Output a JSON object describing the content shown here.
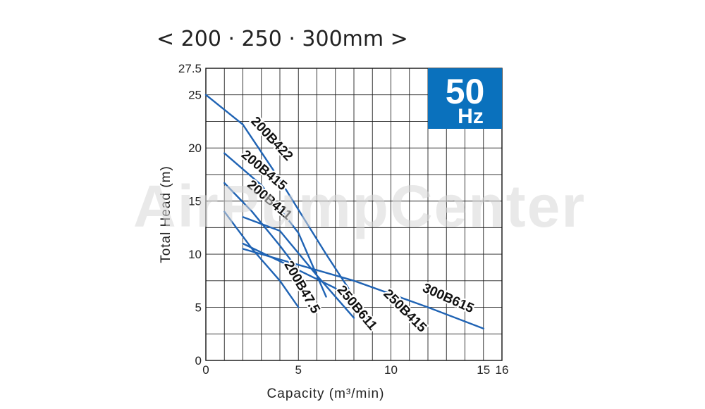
{
  "title": "< 200 · 250 · 300mm >",
  "watermark": "AirPumpCenter",
  "badge": {
    "main": "50",
    "sub": "Hz",
    "color": "#0a71bd"
  },
  "chart_data": {
    "type": "line",
    "xlabel": "Capacity (m³/min)",
    "ylabel": "Total Head (m)",
    "xlim": [
      0,
      16
    ],
    "ylim": [
      0,
      27.5
    ],
    "x_ticks": [
      0,
      5,
      10,
      15,
      16
    ],
    "y_ticks": [
      0,
      5,
      10,
      15,
      20,
      25,
      27.5
    ],
    "grid": true,
    "line_color": "#1f63b4",
    "series": [
      {
        "name": "200B422",
        "points": [
          [
            0,
            25
          ],
          [
            2,
            22.2
          ],
          [
            4,
            17
          ],
          [
            6.5,
            10
          ],
          [
            8,
            6
          ]
        ]
      },
      {
        "name": "200B415",
        "points": [
          [
            1,
            19.5
          ],
          [
            3,
            16.5
          ],
          [
            5,
            12
          ],
          [
            6.5,
            6
          ]
        ]
      },
      {
        "name": "200B411",
        "points": [
          [
            1,
            16.7
          ],
          [
            2.5,
            14
          ],
          [
            4,
            10.8
          ],
          [
            5,
            8.5
          ]
        ]
      },
      {
        "name": "200B47.5",
        "points": [
          [
            1,
            14
          ],
          [
            2.5,
            10.5
          ],
          [
            4,
            7.5
          ],
          [
            5,
            5
          ]
        ]
      },
      {
        "name": "250B611",
        "points": [
          [
            2,
            13.5
          ],
          [
            4,
            12.2
          ],
          [
            6,
            8
          ],
          [
            8,
            4
          ]
        ]
      },
      {
        "name": "250B415",
        "points": [
          [
            2,
            11
          ],
          [
            5,
            8.5
          ],
          [
            7,
            6.8
          ],
          [
            8.7,
            4
          ]
        ]
      },
      {
        "name": "300B615",
        "points": [
          [
            2,
            10.5
          ],
          [
            8,
            7.5
          ],
          [
            12,
            5
          ],
          [
            15,
            3
          ]
        ]
      }
    ],
    "label_positions": [
      {
        "series": "200B422",
        "x": 3.4,
        "y": 20.6,
        "angle": 47
      },
      {
        "series": "200B415",
        "x": 3.0,
        "y": 17.6,
        "angle": 40
      },
      {
        "series": "200B411",
        "x": 3.3,
        "y": 14.8,
        "angle": 40
      },
      {
        "series": "200B47.5",
        "x": 5.0,
        "y": 6.7,
        "angle": 60
      },
      {
        "series": "250B611",
        "x": 8.0,
        "y": 4.7,
        "angle": 50
      },
      {
        "series": "250B415",
        "x": 10.6,
        "y": 4.4,
        "angle": 45
      },
      {
        "series": "300B615",
        "x": 13.0,
        "y": 5.5,
        "angle": 24
      }
    ]
  }
}
